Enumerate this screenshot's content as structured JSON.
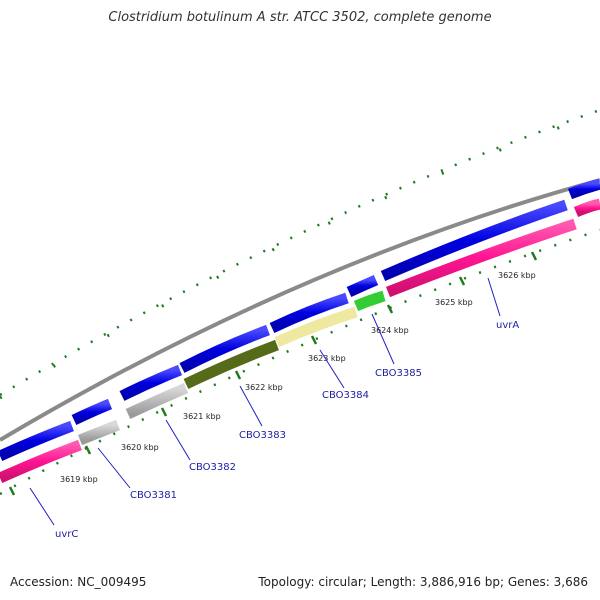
{
  "title": "Clostridium botulinum A str. ATCC 3502, complete genome",
  "footer": {
    "accession": "Accession: NC_009495",
    "summary": "Topology: circular; Length: 3,886,916 bp; Genes: 3,686"
  },
  "colors": {
    "backbone": "#888888",
    "forward_gene": "#0a0ae6",
    "reverse_gene": "#ff1493",
    "tick": "#1f7a1f",
    "label": "#2020a0",
    "cds_grey": "#b0b0b0",
    "cds_olive": "#556b1a",
    "cds_khaki": "#eee8a0",
    "cds_green": "#33cc33"
  },
  "ticks": [
    {
      "label": "3619 kbp"
    },
    {
      "label": "3620 kbp"
    },
    {
      "label": "3621 kbp"
    },
    {
      "label": "3622 kbp"
    },
    {
      "label": "3623 kbp"
    },
    {
      "label": "3624 kbp"
    },
    {
      "label": "3625 kbp"
    },
    {
      "label": "3626 kbp"
    }
  ],
  "genes": [
    {
      "label": "uvrC"
    },
    {
      "label": "CBO3381"
    },
    {
      "label": "CBO3382"
    },
    {
      "label": "CBO3383"
    },
    {
      "label": "CBO3384"
    },
    {
      "label": "CBO3385"
    },
    {
      "label": "uvrA"
    }
  ]
}
